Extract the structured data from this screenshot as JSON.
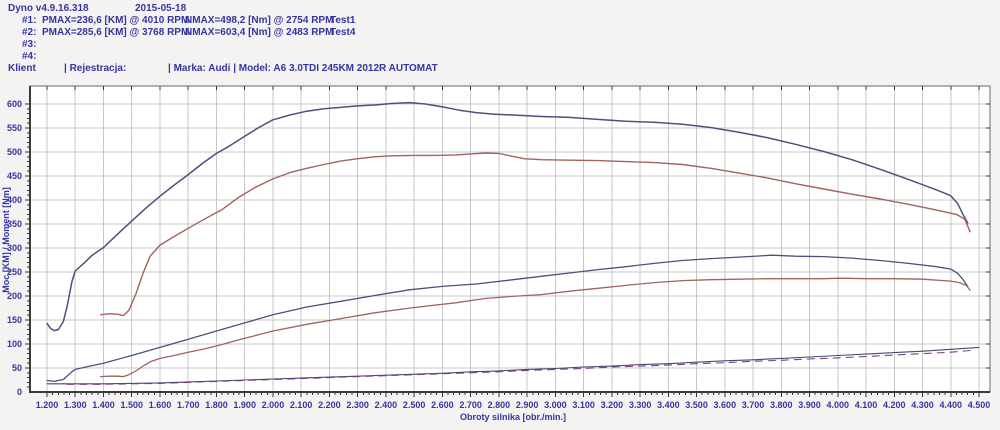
{
  "header": {
    "app_title": "Dyno v4.9.16.318",
    "date": "2015-05-18",
    "runs": [
      {
        "id": "#1:",
        "pmax": "PMAX=236,6 [KM] @ 4010 RPM",
        "nmax": "NMAX=498,2 [Nm] @ 2754 RPM",
        "test": "Test1"
      },
      {
        "id": "#2:",
        "pmax": "PMAX=285,6 [KM] @ 3768 RPM",
        "nmax": "NMAX=603,4 [Nm] @ 2483 RPM",
        "test": "Test4"
      },
      {
        "id": "#3:",
        "pmax": "",
        "nmax": "",
        "test": ""
      },
      {
        "id": "#4:",
        "pmax": "",
        "nmax": "",
        "test": ""
      }
    ],
    "client_label": "Klient",
    "registration_label": "| Rejestracja:",
    "vehicle_label": "| Marka: Audi | Model: A6 3.0TDI 245KM 2012R AUTOMAT"
  },
  "colors": {
    "text_blue": "#3535a0",
    "curve_blue": "#4a517d",
    "curve_red": "#a2635e",
    "loss_blue": "#434a73",
    "loss_purple": "#7d3f80",
    "grid": "#c7c7c7",
    "plot_bg": "#ffffff",
    "border_dark": "#3a3a3a",
    "border_light": "#6a6a6a"
  },
  "chart_data": {
    "type": "line",
    "title": "",
    "xlabel": "Obroty silnika [obr./min.]",
    "ylabel": "Moc [KM] / Moment [Nm]",
    "xlim": [
      1200,
      4500
    ],
    "ylim": [
      0,
      600
    ],
    "grid": true,
    "legend_position": "none",
    "xticks": [
      "1.200",
      "1.300",
      "1.400",
      "1.500",
      "1.600",
      "1.700",
      "1.800",
      "1.900",
      "2.000",
      "2.100",
      "2.200",
      "2.300",
      "2.400",
      "2.500",
      "2.600",
      "2.700",
      "2.800",
      "2.900",
      "3.000",
      "3.100",
      "3.200",
      "3.300",
      "3.400",
      "3.500",
      "3.600",
      "3.700",
      "3.800",
      "3.900",
      "4.000",
      "4.100",
      "4.200",
      "4.300",
      "4.400",
      "4.500"
    ],
    "yticks": [
      0,
      50,
      100,
      150,
      200,
      250,
      300,
      350,
      400,
      450,
      500,
      550,
      600
    ],
    "series": [
      {
        "name": "torque-test4-nm",
        "color": "curve_blue",
        "width": 1.5,
        "dash": "",
        "points": [
          [
            1200,
            143
          ],
          [
            1212,
            133
          ],
          [
            1225,
            128
          ],
          [
            1240,
            130
          ],
          [
            1258,
            147
          ],
          [
            1272,
            180
          ],
          [
            1288,
            230
          ],
          [
            1300,
            252
          ],
          [
            1330,
            268
          ],
          [
            1360,
            285
          ],
          [
            1400,
            301
          ],
          [
            1450,
            329
          ],
          [
            1500,
            356
          ],
          [
            1550,
            383
          ],
          [
            1600,
            408
          ],
          [
            1650,
            431
          ],
          [
            1700,
            453
          ],
          [
            1750,
            476
          ],
          [
            1800,
            497
          ],
          [
            1850,
            514
          ],
          [
            1900,
            533
          ],
          [
            1950,
            551
          ],
          [
            2000,
            567
          ],
          [
            2060,
            577
          ],
          [
            2120,
            585
          ],
          [
            2180,
            590
          ],
          [
            2240,
            593
          ],
          [
            2300,
            596
          ],
          [
            2360,
            598
          ],
          [
            2420,
            601
          ],
          [
            2483,
            603
          ],
          [
            2540,
            600
          ],
          [
            2600,
            594
          ],
          [
            2660,
            587
          ],
          [
            2720,
            582
          ],
          [
            2780,
            579
          ],
          [
            2850,
            577
          ],
          [
            2950,
            574
          ],
          [
            3050,
            572
          ],
          [
            3150,
            568
          ],
          [
            3250,
            564
          ],
          [
            3350,
            562
          ],
          [
            3450,
            558
          ],
          [
            3550,
            551
          ],
          [
            3650,
            541
          ],
          [
            3750,
            530
          ],
          [
            3850,
            516
          ],
          [
            3950,
            501
          ],
          [
            4050,
            484
          ],
          [
            4150,
            464
          ],
          [
            4250,
            443
          ],
          [
            4350,
            421
          ],
          [
            4400,
            409
          ],
          [
            4425,
            392
          ],
          [
            4445,
            368
          ],
          [
            4460,
            352
          ]
        ]
      },
      {
        "name": "torque-test1-nm",
        "color": "curve_red",
        "width": 1.4,
        "dash": "",
        "points": [
          [
            1390,
            161
          ],
          [
            1420,
            163
          ],
          [
            1450,
            162
          ],
          [
            1470,
            159
          ],
          [
            1490,
            170
          ],
          [
            1515,
            205
          ],
          [
            1540,
            247
          ],
          [
            1565,
            283
          ],
          [
            1600,
            306
          ],
          [
            1650,
            324
          ],
          [
            1700,
            341
          ],
          [
            1760,
            361
          ],
          [
            1820,
            380
          ],
          [
            1880,
            406
          ],
          [
            1940,
            427
          ],
          [
            2000,
            444
          ],
          [
            2060,
            457
          ],
          [
            2120,
            466
          ],
          [
            2180,
            474
          ],
          [
            2240,
            481
          ],
          [
            2300,
            486
          ],
          [
            2360,
            490
          ],
          [
            2420,
            492
          ],
          [
            2500,
            493
          ],
          [
            2580,
            493
          ],
          [
            2650,
            494
          ],
          [
            2700,
            496
          ],
          [
            2754,
            498
          ],
          [
            2800,
            497
          ],
          [
            2840,
            492
          ],
          [
            2890,
            486
          ],
          [
            2950,
            484
          ],
          [
            3050,
            483
          ],
          [
            3150,
            482
          ],
          [
            3250,
            480
          ],
          [
            3350,
            478
          ],
          [
            3450,
            474
          ],
          [
            3550,
            466
          ],
          [
            3650,
            456
          ],
          [
            3750,
            446
          ],
          [
            3850,
            434
          ],
          [
            3950,
            423
          ],
          [
            4050,
            412
          ],
          [
            4150,
            402
          ],
          [
            4250,
            391
          ],
          [
            4350,
            379
          ],
          [
            4420,
            370
          ],
          [
            4450,
            360
          ],
          [
            4468,
            334
          ]
        ]
      },
      {
        "name": "power-test4-km",
        "color": "curve_blue",
        "width": 1.3,
        "dash": "",
        "points": [
          [
            1200,
            24
          ],
          [
            1225,
            22
          ],
          [
            1258,
            26
          ],
          [
            1288,
            42
          ],
          [
            1300,
            47
          ],
          [
            1360,
            55
          ],
          [
            1400,
            60
          ],
          [
            1500,
            76
          ],
          [
            1600,
            93
          ],
          [
            1700,
            110
          ],
          [
            1800,
            127
          ],
          [
            1900,
            144
          ],
          [
            2000,
            161
          ],
          [
            2120,
            177
          ],
          [
            2240,
            189
          ],
          [
            2360,
            201
          ],
          [
            2483,
            213
          ],
          [
            2600,
            220
          ],
          [
            2720,
            225
          ],
          [
            2850,
            234
          ],
          [
            2950,
            241
          ],
          [
            3050,
            248
          ],
          [
            3150,
            255
          ],
          [
            3250,
            261
          ],
          [
            3350,
            268
          ],
          [
            3450,
            274
          ],
          [
            3550,
            278
          ],
          [
            3650,
            281
          ],
          [
            3768,
            285
          ],
          [
            3850,
            283
          ],
          [
            3950,
            282
          ],
          [
            4050,
            279
          ],
          [
            4150,
            274
          ],
          [
            4250,
            268
          ],
          [
            4350,
            261
          ],
          [
            4400,
            256
          ],
          [
            4425,
            247
          ],
          [
            4445,
            233
          ],
          [
            4460,
            220
          ]
        ]
      },
      {
        "name": "power-test1-km",
        "color": "curve_red",
        "width": 1.3,
        "dash": "",
        "points": [
          [
            1390,
            32
          ],
          [
            1420,
            33
          ],
          [
            1450,
            33
          ],
          [
            1470,
            32
          ],
          [
            1490,
            36
          ],
          [
            1515,
            44
          ],
          [
            1540,
            54
          ],
          [
            1565,
            63
          ],
          [
            1600,
            70
          ],
          [
            1650,
            76
          ],
          [
            1700,
            83
          ],
          [
            1760,
            90
          ],
          [
            1820,
            99
          ],
          [
            1880,
            109
          ],
          [
            1940,
            118
          ],
          [
            2000,
            127
          ],
          [
            2120,
            141
          ],
          [
            2240,
            153
          ],
          [
            2360,
            165
          ],
          [
            2500,
            176
          ],
          [
            2650,
            186
          ],
          [
            2754,
            195
          ],
          [
            2840,
            199
          ],
          [
            2950,
            203
          ],
          [
            3050,
            210
          ],
          [
            3150,
            216
          ],
          [
            3250,
            222
          ],
          [
            3350,
            228
          ],
          [
            3450,
            232
          ],
          [
            3550,
            234
          ],
          [
            3650,
            235
          ],
          [
            3750,
            236
          ],
          [
            3850,
            236
          ],
          [
            3950,
            236
          ],
          [
            4010,
            237
          ],
          [
            4100,
            236
          ],
          [
            4200,
            236
          ],
          [
            4300,
            235
          ],
          [
            4400,
            231
          ],
          [
            4430,
            228
          ],
          [
            4455,
            222
          ],
          [
            4468,
            212
          ]
        ]
      },
      {
        "name": "loss-test4-km",
        "color": "loss_blue",
        "width": 1.1,
        "dash": "",
        "points": [
          [
            1200,
            17
          ],
          [
            1300,
            17
          ],
          [
            1400,
            17
          ],
          [
            1500,
            18
          ],
          [
            1600,
            19
          ],
          [
            1700,
            21
          ],
          [
            1800,
            23
          ],
          [
            1900,
            25
          ],
          [
            2000,
            27
          ],
          [
            2100,
            29
          ],
          [
            2200,
            31
          ],
          [
            2300,
            33
          ],
          [
            2400,
            35
          ],
          [
            2500,
            37
          ],
          [
            2600,
            39
          ],
          [
            2700,
            42
          ],
          [
            2800,
            44
          ],
          [
            2900,
            47
          ],
          [
            3000,
            49
          ],
          [
            3100,
            52
          ],
          [
            3200,
            54
          ],
          [
            3300,
            57
          ],
          [
            3400,
            59
          ],
          [
            3500,
            62
          ],
          [
            3600,
            65
          ],
          [
            3700,
            67
          ],
          [
            3800,
            70
          ],
          [
            3900,
            73
          ],
          [
            4000,
            76
          ],
          [
            4100,
            79
          ],
          [
            4200,
            82
          ],
          [
            4300,
            85
          ],
          [
            4400,
            89
          ],
          [
            4500,
            93
          ]
        ]
      },
      {
        "name": "loss-test1-km",
        "color": "loss_purple",
        "width": 1.1,
        "dash": "7 6",
        "points": [
          [
            1270,
            16
          ],
          [
            1400,
            16
          ],
          [
            1500,
            17
          ],
          [
            1600,
            18
          ],
          [
            1700,
            20
          ],
          [
            1800,
            22
          ],
          [
            1900,
            24
          ],
          [
            2000,
            26
          ],
          [
            2100,
            28
          ],
          [
            2200,
            30
          ],
          [
            2300,
            32
          ],
          [
            2400,
            34
          ],
          [
            2500,
            36
          ],
          [
            2600,
            38
          ],
          [
            2700,
            40
          ],
          [
            2800,
            42
          ],
          [
            2900,
            45
          ],
          [
            3000,
            47
          ],
          [
            3100,
            49
          ],
          [
            3200,
            52
          ],
          [
            3300,
            54
          ],
          [
            3400,
            56
          ],
          [
            3500,
            59
          ],
          [
            3600,
            61
          ],
          [
            3700,
            64
          ],
          [
            3800,
            66
          ],
          [
            3900,
            69
          ],
          [
            4000,
            71
          ],
          [
            4100,
            74
          ],
          [
            4200,
            77
          ],
          [
            4300,
            80
          ],
          [
            4400,
            83
          ],
          [
            4480,
            87
          ]
        ]
      }
    ]
  }
}
